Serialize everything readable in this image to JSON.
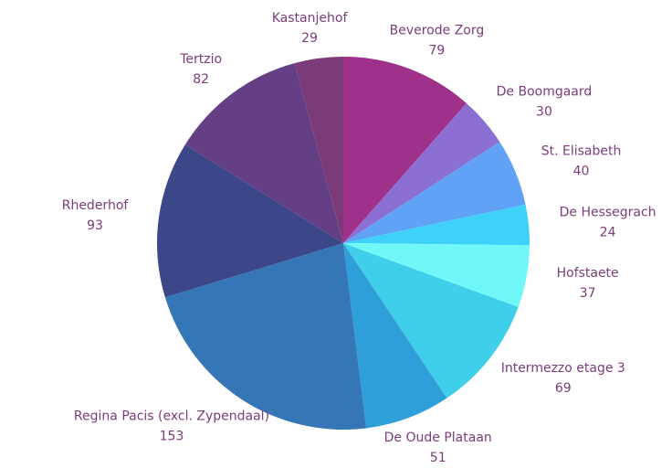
{
  "chart_data": {
    "type": "pie",
    "categories": [
      "Beverode Zorg",
      "De Boomgaard",
      "St. Elisabeth",
      "De Hessegrach",
      "Hofstaete",
      "Intermezzo etage 3",
      "De Oude Plataan",
      "Regina Pacis (excl. Zypendaal)",
      "Rhederhof",
      "Tertzio",
      "Kastanjehof"
    ],
    "values": [
      79,
      30,
      40,
      24,
      37,
      69,
      51,
      153,
      93,
      82,
      29
    ],
    "colors": [
      "#a0318b",
      "#8b6fd2",
      "#60a3f6",
      "#3fd2f9",
      "#70f8f8",
      "#40cfea",
      "#2f9fd9",
      "#3576b6",
      "#3b4789",
      "#643f86",
      "#7b3b79"
    ]
  }
}
